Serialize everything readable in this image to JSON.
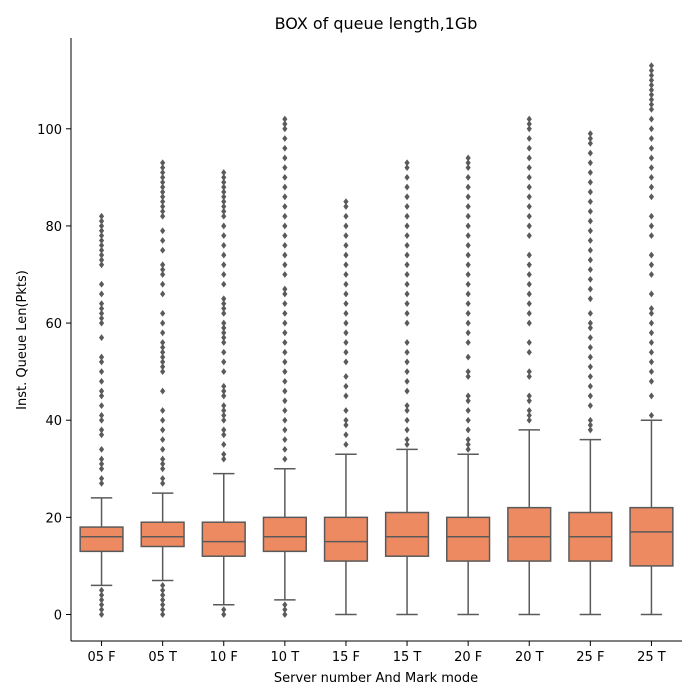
{
  "chart_data": {
    "type": "box",
    "title": "BOX of queue length,1Gb",
    "xlabel": "Server number And Mark mode",
    "ylabel": "Inst. Queue Len(Pkts)",
    "ylim": [
      -5.5,
      119
    ],
    "yticks": [
      0,
      20,
      40,
      60,
      80,
      100
    ],
    "box_color": "#ee8a62",
    "line_color": "#5a5a5a",
    "categories": [
      "05 F",
      "05 T",
      "10 F",
      "10 T",
      "15 F",
      "15 T",
      "20 F",
      "20 T",
      "25 F",
      "25 T"
    ],
    "boxes": [
      {
        "label": "05 F",
        "whislo": 6,
        "q1": 13,
        "median": 16,
        "q3": 18,
        "whishi": 24,
        "fliers_high": [
          27,
          28,
          30,
          31,
          32,
          34,
          37,
          38,
          40,
          41,
          43,
          45,
          46,
          48,
          50,
          52,
          53,
          57,
          60,
          61,
          62,
          63,
          64,
          66,
          68,
          72,
          73,
          74,
          75,
          76,
          77,
          78,
          79,
          80,
          81,
          82
        ],
        "fliers_low": [
          0,
          1,
          2,
          3,
          4,
          5
        ]
      },
      {
        "label": "05 T",
        "whislo": 7,
        "q1": 14,
        "median": 16,
        "q3": 19,
        "whishi": 25,
        "fliers_high": [
          27,
          28,
          30,
          31,
          32,
          34,
          36,
          38,
          40,
          42,
          46,
          50,
          51,
          52,
          53,
          54,
          55,
          56,
          58,
          60,
          62,
          66,
          68,
          70,
          71,
          72,
          75,
          77,
          79,
          82,
          83,
          84,
          85,
          86,
          87,
          88,
          89,
          90,
          91,
          92,
          93
        ],
        "fliers_low": [
          0,
          1,
          2,
          3,
          4,
          5,
          6
        ]
      },
      {
        "label": "10 F",
        "whislo": 2,
        "q1": 12,
        "median": 15,
        "q3": 19,
        "whishi": 29,
        "fliers_high": [
          32,
          33,
          35,
          37,
          38,
          40,
          41,
          42,
          43,
          45,
          46,
          47,
          50,
          52,
          54,
          56,
          57,
          58,
          59,
          60,
          62,
          63,
          64,
          65,
          68,
          70,
          72,
          74,
          76,
          78,
          80,
          82,
          83,
          84,
          85,
          86,
          87,
          88,
          89,
          90,
          91
        ],
        "fliers_low": [
          0,
          1
        ]
      },
      {
        "label": "10 T",
        "whislo": 3,
        "q1": 13,
        "median": 16,
        "q3": 20,
        "whishi": 30,
        "fliers_high": [
          32,
          34,
          36,
          38,
          40,
          42,
          44,
          46,
          48,
          50,
          52,
          54,
          56,
          58,
          60,
          62,
          64,
          66,
          67,
          70,
          72,
          74,
          76,
          78,
          80,
          82,
          84,
          86,
          88,
          90,
          92,
          94,
          96,
          98,
          100,
          101,
          102
        ],
        "fliers_low": [
          0,
          1,
          2
        ]
      },
      {
        "label": "15 F",
        "whislo": 0,
        "q1": 11,
        "median": 15,
        "q3": 20,
        "whishi": 33,
        "fliers_high": [
          35,
          37,
          39,
          40,
          42,
          45,
          47,
          49,
          52,
          54,
          56,
          58,
          60,
          62,
          64,
          66,
          68,
          70,
          72,
          74,
          76,
          78,
          80,
          82,
          84,
          85
        ],
        "fliers_low": []
      },
      {
        "label": "15 T",
        "whislo": 0,
        "q1": 12,
        "median": 16,
        "q3": 21,
        "whishi": 34,
        "fliers_high": [
          35,
          36,
          38,
          40,
          42,
          43,
          46,
          48,
          50,
          52,
          54,
          56,
          60,
          62,
          64,
          66,
          68,
          70,
          72,
          74,
          76,
          78,
          80,
          82,
          84,
          86,
          88,
          90,
          92,
          93
        ],
        "fliers_low": []
      },
      {
        "label": "20 F",
        "whislo": 0,
        "q1": 11,
        "median": 16,
        "q3": 20,
        "whishi": 33,
        "fliers_high": [
          34,
          35,
          36,
          38,
          40,
          42,
          44,
          45,
          49,
          50,
          53,
          56,
          58,
          60,
          62,
          64,
          66,
          68,
          70,
          72,
          74,
          76,
          78,
          80,
          82,
          84,
          86,
          88,
          90,
          92,
          93,
          94
        ],
        "fliers_low": []
      },
      {
        "label": "20 T",
        "whislo": 0,
        "q1": 11,
        "median": 16,
        "q3": 22,
        "whishi": 38,
        "fliers_high": [
          40,
          41,
          42,
          44,
          45,
          49,
          50,
          54,
          56,
          60,
          62,
          64,
          66,
          68,
          70,
          72,
          74,
          78,
          80,
          82,
          84,
          86,
          88,
          90,
          92,
          94,
          96,
          98,
          100,
          101,
          102
        ],
        "fliers_low": []
      },
      {
        "label": "25 F",
        "whislo": 0,
        "q1": 11,
        "median": 16,
        "q3": 21,
        "whishi": 36,
        "fliers_high": [
          38,
          39,
          40,
          43,
          45,
          47,
          49,
          51,
          53,
          55,
          57,
          59,
          60,
          62,
          65,
          67,
          69,
          71,
          73,
          75,
          77,
          79,
          81,
          83,
          85,
          87,
          89,
          91,
          93,
          95,
          97,
          98,
          99
        ],
        "fliers_low": []
      },
      {
        "label": "25 T",
        "whislo": 0,
        "q1": 10,
        "median": 17,
        "q3": 22,
        "whishi": 40,
        "fliers_high": [
          41,
          45,
          48,
          50,
          52,
          54,
          56,
          58,
          60,
          62,
          63,
          66,
          70,
          72,
          74,
          78,
          80,
          82,
          86,
          88,
          90,
          92,
          94,
          96,
          98,
          100,
          102,
          104,
          105,
          106,
          107,
          108,
          109,
          110,
          111,
          112,
          113
        ],
        "fliers_low": []
      }
    ]
  }
}
